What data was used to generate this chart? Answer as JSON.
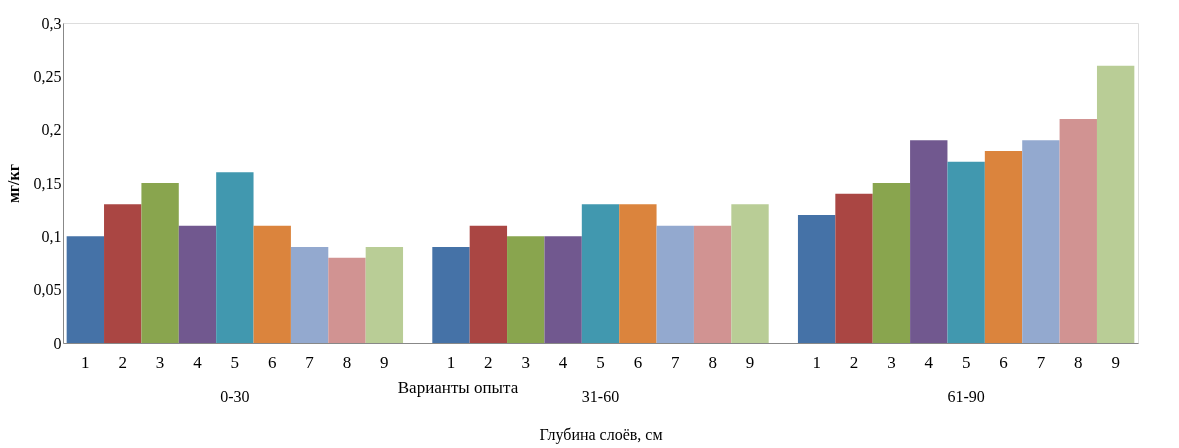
{
  "chart_data": {
    "type": "bar",
    "ylabel": "мг/кг",
    "xlabel": "Глубина слоёв, см",
    "annotations": [
      "Варианты опыта"
    ],
    "categories": [
      "0-30",
      "31-60",
      "61-90"
    ],
    "series": [
      {
        "name": "1",
        "color": "#4572a7",
        "values": [
          0.1,
          0.09,
          0.12
        ]
      },
      {
        "name": "2",
        "color": "#aa4643",
        "values": [
          0.13,
          0.11,
          0.14
        ]
      },
      {
        "name": "3",
        "color": "#89a54e",
        "values": [
          0.15,
          0.1,
          0.15
        ]
      },
      {
        "name": "4",
        "color": "#71588f",
        "values": [
          0.11,
          0.1,
          0.19
        ]
      },
      {
        "name": "5",
        "color": "#4198af",
        "values": [
          0.16,
          0.13,
          0.17
        ]
      },
      {
        "name": "6",
        "color": "#db843d",
        "values": [
          0.11,
          0.13,
          0.18
        ]
      },
      {
        "name": "7",
        "color": "#93a9cf",
        "values": [
          0.09,
          0.11,
          0.19
        ]
      },
      {
        "name": "8",
        "color": "#d19392",
        "values": [
          0.08,
          0.11,
          0.21
        ]
      },
      {
        "name": "9",
        "color": "#b9cd96",
        "values": [
          0.09,
          0.13,
          0.26
        ]
      }
    ],
    "ylim": [
      0,
      0.3
    ],
    "yticks": [
      {
        "value": 0,
        "label": "0"
      },
      {
        "value": 0.05,
        "label": "0,05"
      },
      {
        "value": 0.1,
        "label": "0,1"
      },
      {
        "value": 0.15,
        "label": "0,15"
      },
      {
        "value": 0.2,
        "label": "0,2"
      },
      {
        "value": 0.25,
        "label": "0,25"
      },
      {
        "value": 0.3,
        "label": "0,3"
      }
    ],
    "grid": false,
    "legend": false
  }
}
